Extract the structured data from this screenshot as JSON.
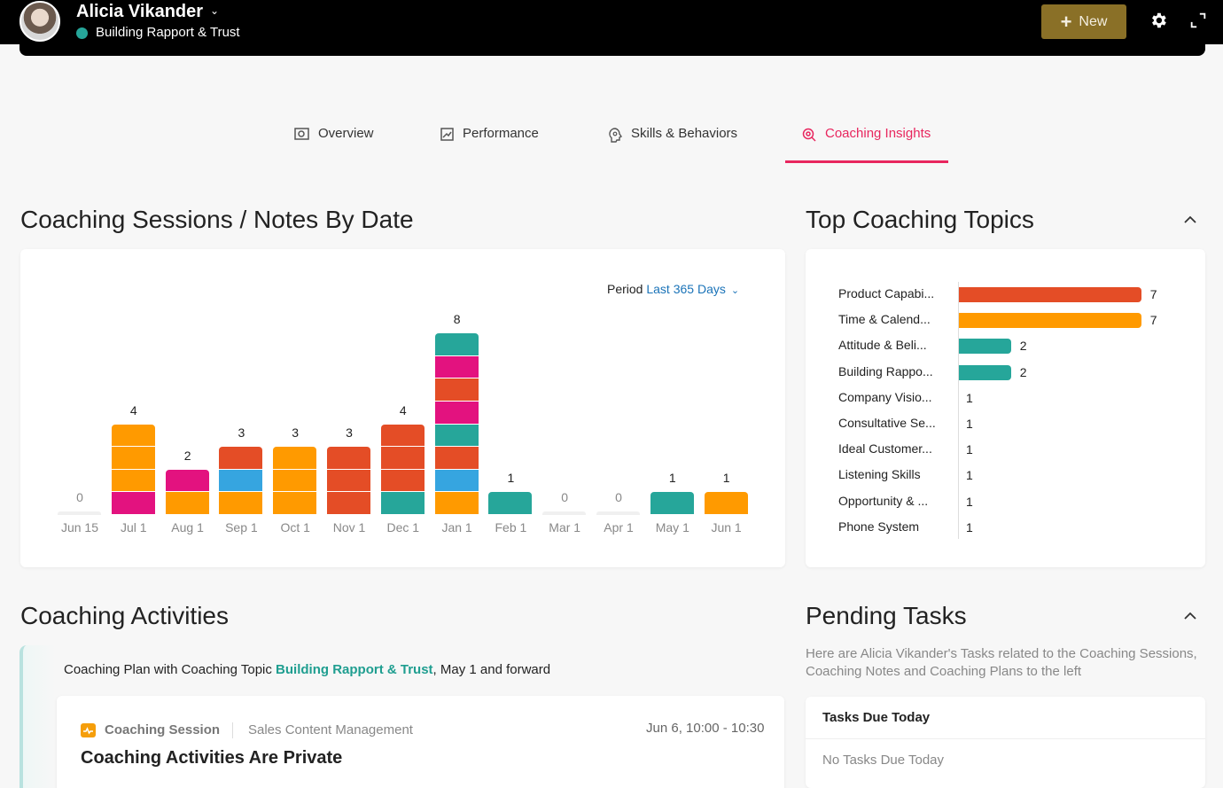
{
  "header": {
    "user_name": "Alicia Vikander",
    "subtitle": "Building Rapport & Trust",
    "new_label": "New",
    "status_color": "#26a69a"
  },
  "tabs": [
    {
      "label": "Overview",
      "icon": "overview-icon",
      "active": false
    },
    {
      "label": "Performance",
      "icon": "performance-icon",
      "active": false
    },
    {
      "label": "Skills & Behaviors",
      "icon": "skills-icon",
      "active": false
    },
    {
      "label": "Coaching Insights",
      "icon": "coaching-insights-icon",
      "active": true
    }
  ],
  "sessions": {
    "title": "Coaching Sessions / Notes By Date",
    "period_label": "Period",
    "period_value": "Last 365 Days"
  },
  "topics": {
    "title": "Top Coaching Topics"
  },
  "activities": {
    "title": "Coaching Activities",
    "plan_prefix": "Coaching Plan with Coaching Topic",
    "plan_topic": "Building Rapport & Trust",
    "plan_suffix": ", May 1 and forward",
    "session_type": "Coaching Session",
    "session_category": "Sales Content Management",
    "session_time": "Jun 6, 10:00 - 10:30",
    "session_title": "Coaching Activities Are Private"
  },
  "pending": {
    "title": "Pending Tasks",
    "description": "Here are Alicia Vikander's Tasks related to the Coaching Sessions, Coaching Notes and Coaching Plans to the left",
    "tasks_header": "Tasks Due Today",
    "tasks_empty": "No Tasks Due Today"
  },
  "colors": {
    "accent": "#e8265e",
    "orange": "#ff9a00",
    "red": "#e44d26",
    "teal": "#26a69a",
    "pink": "#e3127f",
    "blue": "#36a5e0"
  },
  "chart_data": [
    {
      "type": "bar",
      "stacked": true,
      "categories": [
        "Jun 15",
        "Jul 1",
        "Aug 1",
        "Sep 1",
        "Oct 1",
        "Nov 1",
        "Dec 1",
        "Jan 1",
        "Feb 1",
        "Mar 1",
        "Apr 1",
        "May 1",
        "Jun 1"
      ],
      "totals": [
        0,
        4,
        2,
        3,
        3,
        3,
        4,
        8,
        1,
        0,
        0,
        1,
        1
      ],
      "stacks": [
        [],
        [
          "pink",
          "orange",
          "orange",
          "orange"
        ],
        [
          "orange",
          "pink"
        ],
        [
          "orange",
          "blue",
          "red"
        ],
        [
          "orange",
          "orange",
          "orange"
        ],
        [
          "red",
          "red",
          "red"
        ],
        [
          "teal",
          "red",
          "red",
          "red"
        ],
        [
          "orange",
          "blue",
          "red",
          "teal",
          "pink",
          "red",
          "pink",
          "teal"
        ],
        [
          "teal"
        ],
        [],
        [],
        [
          "teal"
        ],
        [
          "orange"
        ]
      ],
      "ylim": [
        0,
        8
      ]
    },
    {
      "type": "bar",
      "orientation": "horizontal",
      "categories": [
        "Product Capabi...",
        "Time & Calend...",
        "Attitude & Beli...",
        "Building Rappo...",
        "Company Visio...",
        "Consultative Se...",
        "Ideal Customer...",
        "Listening Skills",
        "Opportunity & ...",
        "Phone System"
      ],
      "values": [
        7,
        7,
        2,
        2,
        1,
        1,
        1,
        1,
        1,
        1
      ],
      "bar_colors": [
        "red",
        "orange",
        "teal",
        "teal",
        "",
        "",
        "",
        "",
        "",
        ""
      ]
    }
  ]
}
